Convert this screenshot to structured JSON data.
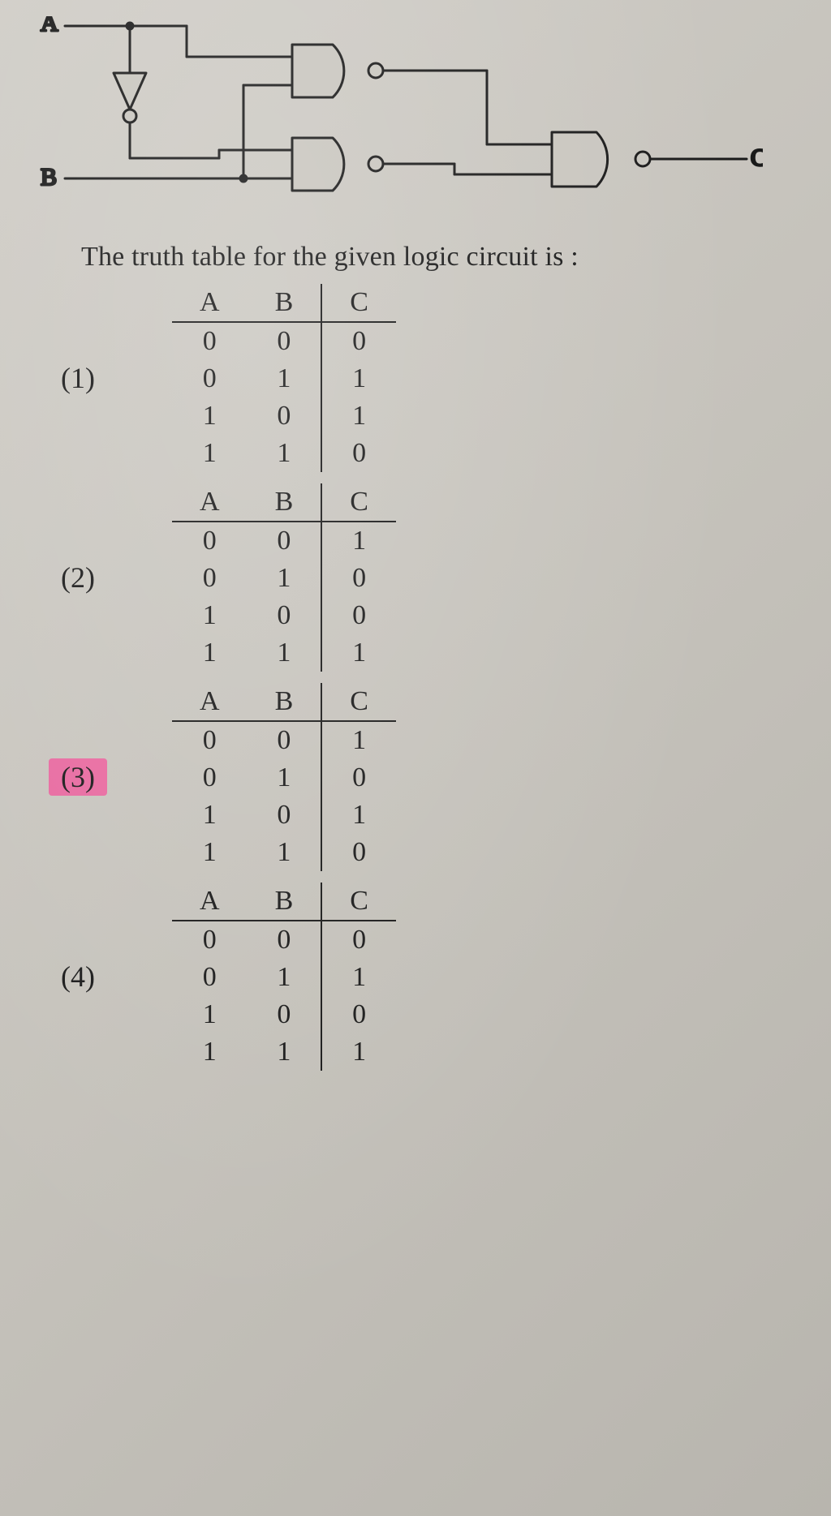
{
  "circuit": {
    "labels": {
      "A": "A",
      "B": "B",
      "C": "C"
    },
    "colors": {
      "wire": "#1a1a1a",
      "gate_fill": "#c9c6bf",
      "gate_stroke": "#1a1a1a",
      "stroke_width": 3
    }
  },
  "caption": "The truth table for the given logic circuit is :",
  "columns_header": [
    "A",
    "B",
    "C"
  ],
  "options": [
    {
      "label": "(1)",
      "highlight": false,
      "rows": [
        [
          0,
          0,
          0
        ],
        [
          0,
          1,
          1
        ],
        [
          1,
          0,
          1
        ],
        [
          1,
          1,
          0
        ]
      ]
    },
    {
      "label": "(2)",
      "highlight": false,
      "rows": [
        [
          0,
          0,
          1
        ],
        [
          0,
          1,
          0
        ],
        [
          1,
          0,
          0
        ],
        [
          1,
          1,
          1
        ]
      ]
    },
    {
      "label": "(3)",
      "highlight": true,
      "rows": [
        [
          0,
          0,
          1
        ],
        [
          0,
          1,
          0
        ],
        [
          1,
          0,
          1
        ],
        [
          1,
          1,
          0
        ]
      ]
    },
    {
      "label": "(4)",
      "highlight": false,
      "rows": [
        [
          0,
          0,
          0
        ],
        [
          0,
          1,
          1
        ],
        [
          1,
          0,
          0
        ],
        [
          1,
          1,
          1
        ]
      ]
    }
  ],
  "style": {
    "highlight_color": "#e86aa0",
    "font_family": "Georgia, Times New Roman, serif",
    "page_bg": "#c8c5c0",
    "text_color": "#1a1a1a",
    "header_fontsize": 34,
    "cell_fontsize": 34,
    "label_fontsize": 36
  }
}
